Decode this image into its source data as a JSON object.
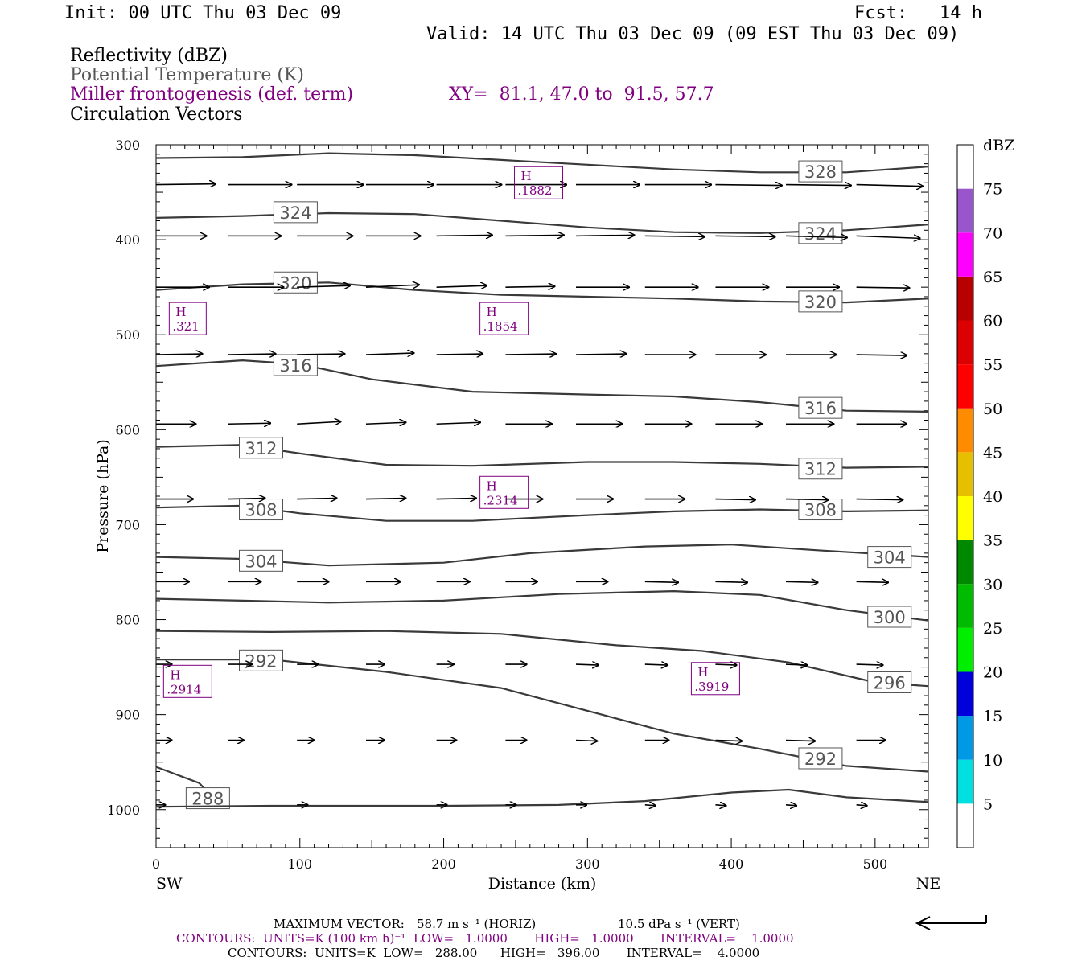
{
  "header": {
    "init": "Init: 00 UTC Thu 03 Dec 09",
    "fcst": "Fcst:   14 h",
    "valid": "Valid: 14 UTC Thu 03 Dec 09 (09 EST Thu 03 Dec 09)"
  },
  "legend": {
    "reflectivity": "Reflectivity (dBZ)",
    "theta": "Potential Temperature (K)",
    "miller": "Miller frontogenesis (def. term)",
    "xy": "XY=  81.1, 47.0 to  91.5, 57.7",
    "circulation": "Circulation Vectors"
  },
  "footer": {
    "max_vector_label": "MAXIMUM VECTOR:",
    "max_vector_horiz": "58.7 m s⁻¹ (HORIZ)",
    "max_vector_vert": "10.5 dPa s⁻¹ (VERT)",
    "contours_front": "CONTOURS:  UNITS=K (100 km h)⁻¹  LOW=   1.0000       HIGH=   1.0000       INTERVAL=    1.0000",
    "contours_theta": "CONTOURS:  UNITS=K  LOW=   288.00      HIGH=   396.00       INTERVAL=    4.0000"
  },
  "colors": {
    "contour": "#3a3a3a",
    "purple": "#800080",
    "dbz_scale": [
      "#ffffff",
      "#00e0e0",
      "#0099e6",
      "#0000dd",
      "#00ee00",
      "#00bb00",
      "#008800",
      "#ffff00",
      "#e6c000",
      "#ff8c00",
      "#ff0000",
      "#dd0000",
      "#b80000",
      "#ff00ff",
      "#9955cc",
      "#ffffff"
    ]
  },
  "chart_data": {
    "type": "cross-section",
    "xlabel": "Distance (km)",
    "ylabel": "Pressure (hPa)",
    "xlim": [
      0,
      537
    ],
    "ylim": [
      1040,
      300
    ],
    "x_ticks": [
      0,
      100,
      200,
      300,
      400,
      500
    ],
    "y_ticks": [
      300,
      400,
      500,
      600,
      700,
      800,
      900,
      1000
    ],
    "left_end_label": "SW",
    "right_end_label": "NE",
    "colorbar": {
      "unit": "dBZ",
      "labels": [
        5,
        10,
        15,
        20,
        25,
        30,
        35,
        40,
        45,
        50,
        55,
        60,
        65,
        70,
        75
      ]
    },
    "theta_contours": [
      {
        "level": 328,
        "points": [
          [
            0,
            314
          ],
          [
            60,
            313
          ],
          [
            120,
            309
          ],
          [
            180,
            311
          ],
          [
            240,
            316
          ],
          [
            300,
            321
          ],
          [
            360,
            326
          ],
          [
            420,
            329
          ],
          [
            480,
            329
          ],
          [
            537,
            323
          ]
        ],
        "labels": [
          [
            462,
            328
          ]
        ]
      },
      {
        "level": 324,
        "points": [
          [
            0,
            377
          ],
          [
            60,
            375
          ],
          [
            120,
            372
          ],
          [
            180,
            373
          ],
          [
            240,
            380
          ],
          [
            300,
            387
          ],
          [
            360,
            392
          ],
          [
            420,
            393
          ],
          [
            480,
            390
          ],
          [
            537,
            384
          ]
        ],
        "labels": [
          [
            97,
            371
          ],
          [
            462,
            393
          ]
        ]
      },
      {
        "level": 320,
        "points": [
          [
            0,
            453
          ],
          [
            60,
            447
          ],
          [
            120,
            445
          ],
          [
            180,
            453
          ],
          [
            240,
            458
          ],
          [
            300,
            460
          ],
          [
            360,
            462
          ],
          [
            420,
            465
          ],
          [
            480,
            466
          ],
          [
            537,
            462
          ]
        ],
        "labels": [
          [
            97,
            445
          ],
          [
            462,
            465
          ]
        ]
      },
      {
        "level": 316,
        "points": [
          [
            0,
            533
          ],
          [
            60,
            527
          ],
          [
            100,
            531
          ],
          [
            150,
            547
          ],
          [
            220,
            560
          ],
          [
            300,
            563
          ],
          [
            360,
            565
          ],
          [
            420,
            571
          ],
          [
            480,
            580
          ],
          [
            537,
            581
          ]
        ],
        "labels": [
          [
            97,
            532
          ],
          [
            462,
            577
          ]
        ]
      },
      {
        "level": 312,
        "points": [
          [
            0,
            618
          ],
          [
            60,
            616
          ],
          [
            100,
            625
          ],
          [
            160,
            637
          ],
          [
            220,
            638
          ],
          [
            300,
            634
          ],
          [
            360,
            634
          ],
          [
            420,
            636
          ],
          [
            480,
            640
          ],
          [
            537,
            639
          ]
        ],
        "labels": [
          [
            73,
            619
          ],
          [
            462,
            641
          ]
        ]
      },
      {
        "level": 308,
        "points": [
          [
            0,
            682
          ],
          [
            60,
            680
          ],
          [
            100,
            688
          ],
          [
            160,
            696
          ],
          [
            220,
            696
          ],
          [
            300,
            690
          ],
          [
            360,
            686
          ],
          [
            420,
            684
          ],
          [
            480,
            686
          ],
          [
            537,
            685
          ]
        ],
        "labels": [
          [
            73,
            684
          ],
          [
            462,
            684
          ]
        ]
      },
      {
        "level": 304,
        "points": [
          [
            0,
            734
          ],
          [
            60,
            736
          ],
          [
            120,
            743
          ],
          [
            200,
            740
          ],
          [
            260,
            730
          ],
          [
            340,
            723
          ],
          [
            400,
            721
          ],
          [
            460,
            727
          ],
          [
            537,
            734
          ]
        ],
        "labels": [
          [
            73,
            738
          ],
          [
            510,
            734
          ]
        ]
      },
      {
        "level": 300,
        "points": [
          [
            0,
            778
          ],
          [
            60,
            780
          ],
          [
            120,
            782
          ],
          [
            200,
            780
          ],
          [
            280,
            773
          ],
          [
            360,
            770
          ],
          [
            420,
            774
          ],
          [
            480,
            790
          ],
          [
            537,
            801
          ]
        ],
        "labels": [
          [
            510,
            797
          ]
        ]
      },
      {
        "level": 296,
        "points": [
          [
            0,
            812
          ],
          [
            80,
            813
          ],
          [
            160,
            812
          ],
          [
            240,
            815
          ],
          [
            320,
            827
          ],
          [
            380,
            833
          ],
          [
            440,
            845
          ],
          [
            500,
            866
          ],
          [
            537,
            870
          ]
        ],
        "labels": [
          [
            510,
            866
          ]
        ]
      },
      {
        "level": 292,
        "points": [
          [
            0,
            842
          ],
          [
            80,
            842
          ],
          [
            160,
            855
          ],
          [
            240,
            872
          ],
          [
            320,
            904
          ],
          [
            360,
            920
          ],
          [
            420,
            936
          ],
          [
            480,
            954
          ],
          [
            537,
            960
          ]
        ],
        "labels": [
          [
            73,
            843
          ],
          [
            462,
            946
          ]
        ]
      },
      {
        "level": 288,
        "points": [
          [
            0,
            955
          ],
          [
            30,
            972
          ],
          [
            40,
            988
          ]
        ],
        "labels": [
          [
            36,
            988
          ]
        ]
      },
      {
        "level": 288,
        "points": [
          [
            0,
            997
          ],
          [
            80,
            996
          ],
          [
            200,
            996
          ],
          [
            280,
            995
          ],
          [
            340,
            991
          ],
          [
            400,
            982
          ],
          [
            440,
            979
          ],
          [
            480,
            987
          ],
          [
            537,
            992
          ]
        ],
        "labels": []
      }
    ],
    "frontogenesis_maxima": [
      {
        "label": "H",
        "value": ".1882",
        "x": 266,
        "p": 340
      },
      {
        "label": "H",
        "value": ".321",
        "x": 22,
        "p": 483
      },
      {
        "label": "H",
        "value": ".1854",
        "x": 242,
        "p": 483
      },
      {
        "label": "H",
        "value": ".2314",
        "x": 242,
        "p": 666
      },
      {
        "label": "H",
        "value": ".2914",
        "x": 22,
        "p": 865
      },
      {
        "label": "H",
        "value": ".3919",
        "x": 389,
        "p": 862
      }
    ],
    "vectors": [
      {
        "p": 342,
        "x0": [
          0,
          50,
          98,
          146,
          195,
          243,
          292,
          340,
          389,
          438,
          487
        ],
        "u": [
          45,
          48,
          50,
          51,
          49,
          46,
          48,
          50,
          50,
          49,
          50
        ],
        "w": [
          1,
          0,
          0,
          0,
          0,
          0,
          0,
          0,
          -1,
          -1,
          -2
        ]
      },
      {
        "p": 396,
        "x0": [
          0,
          50,
          98,
          146,
          195,
          243,
          292,
          340,
          389,
          438,
          487
        ],
        "u": [
          38,
          40,
          42,
          41,
          42,
          44,
          44,
          45,
          45,
          46,
          48
        ],
        "w": [
          0,
          0,
          0,
          0,
          1,
          1,
          1,
          -1,
          -1,
          -2,
          -3
        ]
      },
      {
        "p": 450,
        "x0": [
          0,
          50,
          98,
          146,
          195,
          243,
          292,
          340,
          389,
          438,
          487
        ],
        "u": [
          40,
          42,
          40,
          40,
          38,
          37,
          40,
          40,
          40,
          40,
          40
        ],
        "w": [
          0,
          0,
          2,
          3,
          2,
          1,
          0,
          0,
          0,
          0,
          -1
        ]
      },
      {
        "p": 521,
        "x0": [
          0,
          50,
          98,
          146,
          195,
          243,
          292,
          340,
          389,
          438,
          487
        ],
        "u": [
          35,
          36,
          36,
          36,
          35,
          38,
          38,
          38,
          38,
          38,
          38
        ],
        "w": [
          1,
          1,
          1,
          2,
          1,
          1,
          1,
          0,
          0,
          0,
          -1
        ]
      },
      {
        "p": 594,
        "x0": [
          0,
          50,
          98,
          146,
          195,
          243,
          292,
          340,
          389,
          438,
          487
        ],
        "u": [
          30,
          32,
          33,
          30,
          33,
          35,
          35,
          35,
          35,
          36,
          38
        ],
        "w": [
          0,
          1,
          3,
          2,
          2,
          0,
          0,
          0,
          0,
          0,
          0
        ]
      },
      {
        "p": 673,
        "x0": [
          0,
          50,
          98,
          146,
          195,
          243,
          292,
          340,
          389,
          438,
          487
        ],
        "u": [
          28,
          28,
          30,
          30,
          30,
          28,
          28,
          30,
          30,
          32,
          35
        ],
        "w": [
          0,
          1,
          1,
          1,
          1,
          0,
          0,
          0,
          -1,
          -1,
          -1
        ]
      },
      {
        "p": 760,
        "x0": [
          0,
          50,
          98,
          146,
          195,
          243,
          292,
          340,
          389,
          438,
          487
        ],
        "u": [
          25,
          25,
          24,
          26,
          25,
          24,
          24,
          25,
          24,
          24,
          24
        ],
        "w": [
          0,
          0,
          0,
          0,
          0,
          0,
          0,
          -1,
          -1,
          -1,
          -1
        ]
      },
      {
        "p": 847,
        "x0": [
          0,
          50,
          98,
          146,
          195,
          243,
          292,
          340,
          389,
          438,
          487
        ],
        "u": [
          12,
          18,
          16,
          14,
          13,
          16,
          17,
          17,
          16,
          16,
          20
        ],
        "w": [
          0,
          0,
          0,
          0,
          0,
          0,
          -1,
          -1,
          -1,
          -1,
          -1
        ]
      },
      {
        "p": 927,
        "x0": [
          0,
          50,
          98,
          146,
          195,
          243,
          292,
          340,
          389,
          438,
          487
        ],
        "u": [
          12,
          12,
          13,
          14,
          15,
          16,
          16,
          18,
          20,
          22,
          22
        ],
        "w": [
          0,
          0,
          0,
          0,
          0,
          0,
          -1,
          0,
          -1,
          -1,
          0
        ]
      },
      {
        "p": 995,
        "x0": [
          0,
          98,
          195,
          243,
          292,
          340,
          389,
          438,
          487
        ],
        "u": [
          7,
          8,
          8,
          8,
          8,
          8,
          8,
          8,
          8
        ],
        "w": [
          0,
          0,
          0,
          0,
          0,
          -1,
          -1,
          -1,
          -1
        ]
      }
    ]
  }
}
